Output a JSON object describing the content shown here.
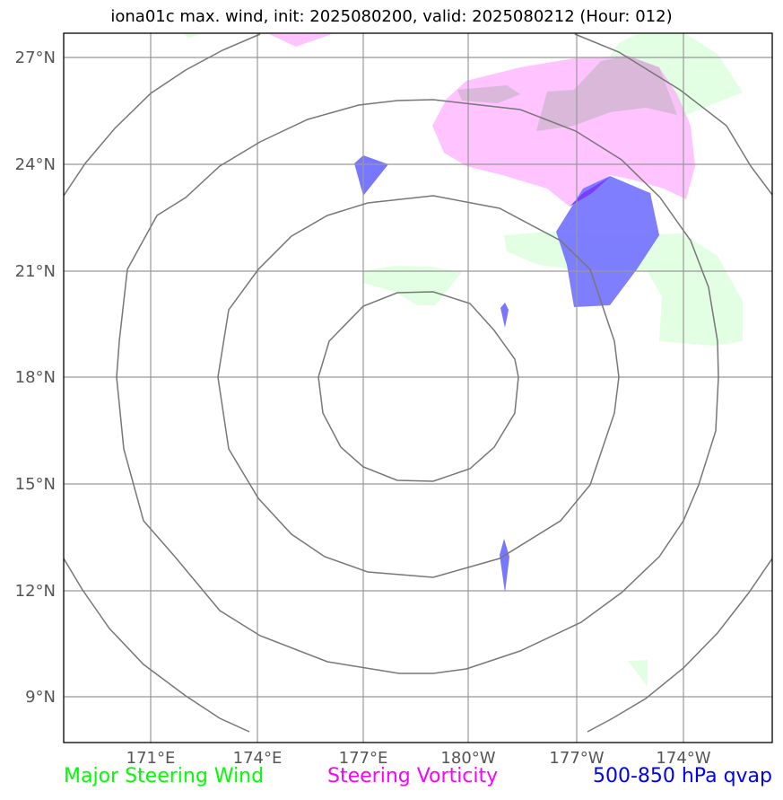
{
  "title": "iona01c max. wind, init: 2025080200, valid: 2025080212 (Hour: 012)",
  "lat_labels": [
    "27°N",
    "24°N",
    "21°N",
    "18°N",
    "15°N",
    "12°N",
    "9°N"
  ],
  "lon_labels": [
    "171°E",
    "174°E",
    "177°E",
    "180°W",
    "177°W",
    "174°W"
  ],
  "legend": {
    "wind": {
      "label": "Major Steering Wind",
      "color": "#00ff00"
    },
    "vorticity": {
      "label": "Steering Vorticity",
      "color": "#ff00ff"
    },
    "qvap": {
      "label": "500-850 hPa qvap",
      "color": "#0000ff"
    }
  },
  "colors": {
    "wind_fill": "#ccffcc",
    "vorticity_fill": "#ffaaff",
    "qvap_fill": "#5555ff",
    "gridline": "#999999",
    "range_ring": "#777777"
  }
}
